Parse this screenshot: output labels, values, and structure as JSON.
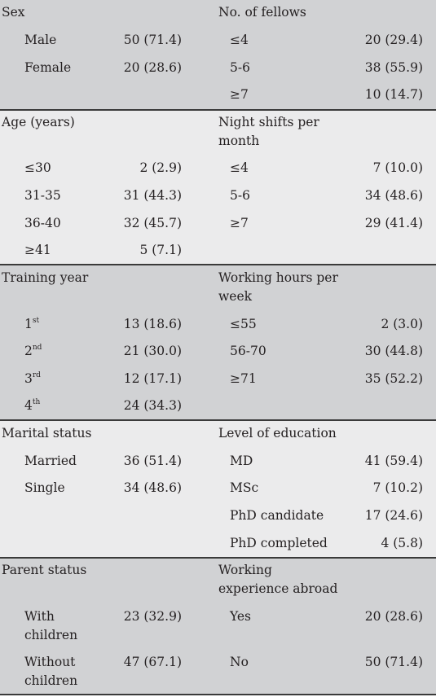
{
  "sections": [
    {
      "left_heading": [
        "Sex"
      ],
      "right_heading": [
        "No. of fellows"
      ],
      "left_rows": [
        {
          "label": [
            "Male"
          ],
          "value": "50 (71.4)"
        },
        {
          "label": [
            "Female"
          ],
          "value": "20 (28.6)"
        }
      ],
      "right_rows": [
        {
          "label": [
            "≤4"
          ],
          "value": "20 (29.4)"
        },
        {
          "label": [
            "5-6"
          ],
          "value": "38 (55.9)"
        },
        {
          "label": [
            "≥7"
          ],
          "value": "10 (14.7)"
        }
      ]
    },
    {
      "left_heading": [
        "Age (years)"
      ],
      "right_heading": [
        "Night shifts per",
        "month"
      ],
      "left_rows": [
        {
          "label": [
            "≤30"
          ],
          "value": "2 (2.9)"
        },
        {
          "label": [
            "31-35"
          ],
          "value": "31 (44.3)"
        },
        {
          "label": [
            "36-40"
          ],
          "value": "32 (45.7)"
        },
        {
          "label": [
            "≥41"
          ],
          "value": "5 (7.1)"
        }
      ],
      "right_rows": [
        {
          "label": [
            "≤4"
          ],
          "value": "7 (10.0)"
        },
        {
          "label": [
            "5-6"
          ],
          "value": "34 (48.6)"
        },
        {
          "label": [
            "≥7"
          ],
          "value": "29 (41.4)"
        }
      ]
    },
    {
      "left_heading": [
        "Training year"
      ],
      "right_heading": [
        "Working hours per",
        "week"
      ],
      "left_rows": [
        {
          "label": [
            "1"
          ],
          "sup": "st",
          "value": "13 (18.6)"
        },
        {
          "label": [
            "2"
          ],
          "sup": "nd",
          "value": "21 (30.0)"
        },
        {
          "label": [
            "3"
          ],
          "sup": "rd",
          "value": "12 (17.1)"
        },
        {
          "label": [
            "4"
          ],
          "sup": "th",
          "value": "24 (34.3)"
        }
      ],
      "right_rows": [
        {
          "label": [
            "≤55"
          ],
          "value": "2 (3.0)"
        },
        {
          "label": [
            "56-70"
          ],
          "value": "30 (44.8)"
        },
        {
          "label": [
            "≥71"
          ],
          "value": "35 (52.2)"
        }
      ]
    },
    {
      "left_heading": [
        "Marital status"
      ],
      "right_heading": [
        "Level of education"
      ],
      "left_rows": [
        {
          "label": [
            "Married"
          ],
          "value": "36 (51.4)"
        },
        {
          "label": [
            "Single"
          ],
          "value": "34 (48.6)"
        }
      ],
      "right_rows": [
        {
          "label": [
            "MD"
          ],
          "value": "41 (59.4)"
        },
        {
          "label": [
            "MSc"
          ],
          "value": "7 (10.2)"
        },
        {
          "label": [
            "PhD candidate"
          ],
          "value": "17 (24.6)"
        },
        {
          "label": [
            "PhD completed"
          ],
          "value": "4 (5.8)"
        }
      ]
    },
    {
      "left_heading": [
        "Parent status"
      ],
      "right_heading": [
        "Working",
        "experience abroad"
      ],
      "left_rows": [
        {
          "label": [
            "With",
            "children"
          ],
          "value": "23 (32.9)"
        },
        {
          "label": [
            "Without",
            "children"
          ],
          "value": "47 (67.1)"
        }
      ],
      "right_rows": [
        {
          "label": [
            "Yes"
          ],
          "value": "20 (28.6)"
        },
        {
          "label": [
            "No"
          ],
          "value": "50 (71.4)"
        }
      ]
    }
  ],
  "colors": {
    "band_dark": "#d1d2d4",
    "band_light": "#ebebec",
    "rule": "#3a3a3a",
    "text": "#231f20"
  }
}
